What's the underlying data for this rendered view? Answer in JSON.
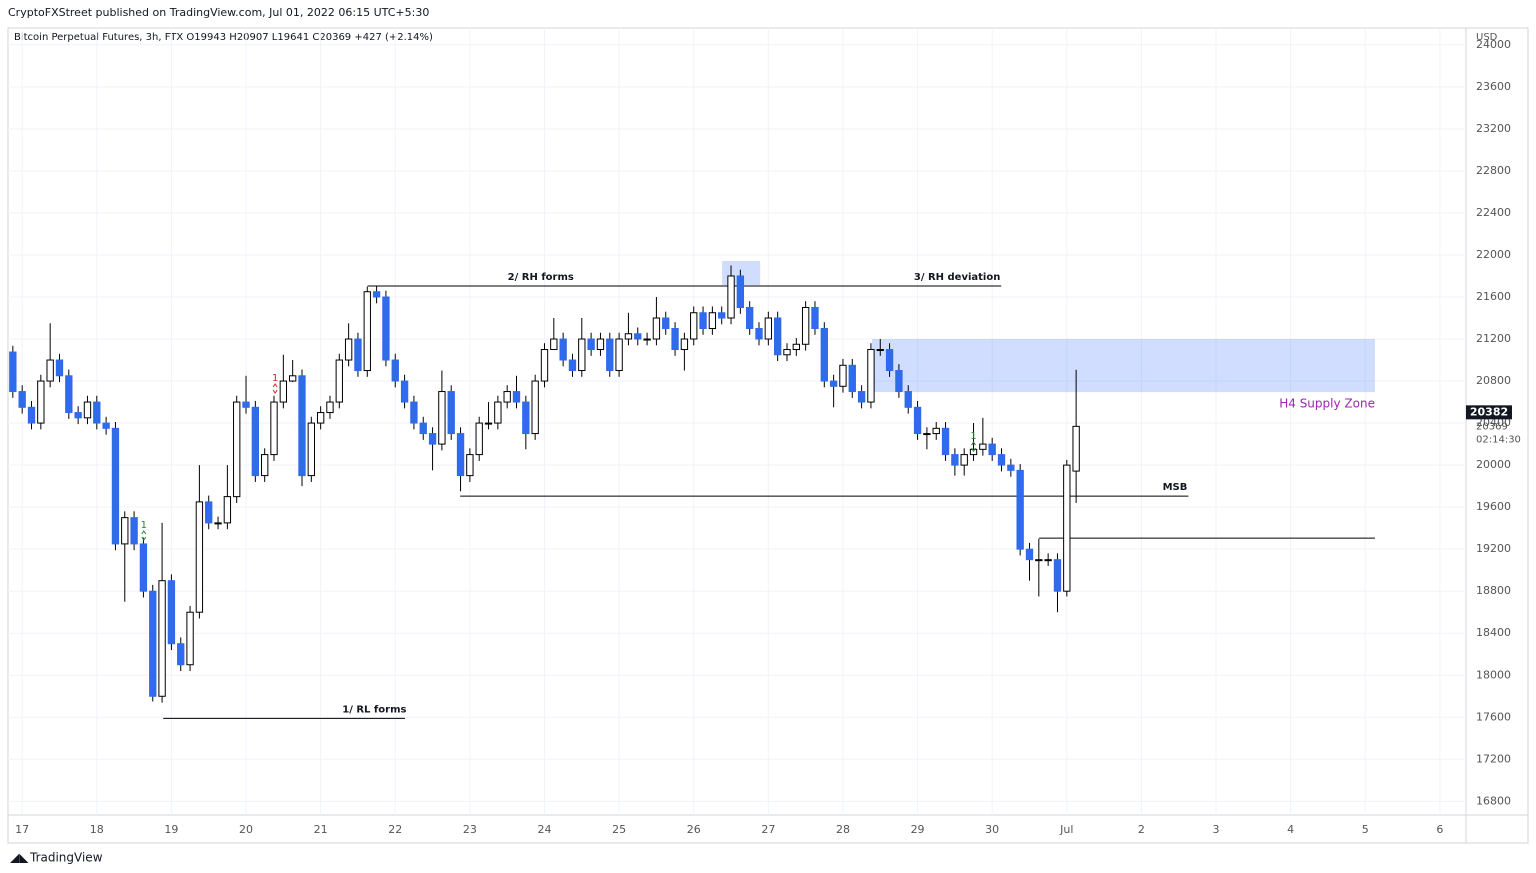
{
  "header": {
    "published": "CryptoFXStreet published on TradingView.com, Jul 01, 2022 06:15 UTC+5:30",
    "footer": "TradingView"
  },
  "chart_data": {
    "type": "candlestick",
    "title": "Bitcoin Perpetual Futures, 3h, FTX  O19943  H20907  L19641  C20369  +427 (+2.14%)",
    "y_unit": "USD",
    "bull_color": "#ffffff",
    "bear_color": "#2f6bea",
    "wick_color": "#000000",
    "x": [
      -0.125,
      0,
      0.125,
      0.25,
      0.375,
      0.5,
      0.625,
      0.75,
      0.875,
      1,
      1.125,
      1.25,
      1.375,
      1.5,
      1.625,
      1.75,
      1.875,
      2,
      2.125,
      2.25,
      2.375,
      2.5,
      2.625,
      2.75,
      2.875,
      3,
      3.125,
      3.25,
      3.375,
      3.5,
      3.625,
      3.75,
      3.875,
      4,
      4.125,
      4.25,
      4.375,
      4.5,
      4.625,
      4.75,
      4.875,
      5,
      5.125,
      5.25,
      5.375,
      5.5,
      5.625,
      5.75,
      5.875,
      6,
      6.125,
      6.25,
      6.375,
      6.5,
      6.625,
      6.75,
      6.875,
      7,
      7.125,
      7.25,
      7.375,
      7.5,
      7.625,
      7.75,
      7.875,
      8,
      8.125,
      8.25,
      8.375,
      8.5,
      8.625,
      8.75,
      8.875,
      9,
      9.125,
      9.25,
      9.375,
      9.5,
      9.625,
      9.75,
      9.875,
      10,
      10.125,
      10.25,
      10.375,
      10.5,
      10.625,
      10.75,
      10.875,
      11,
      11.125,
      11.25,
      11.375,
      11.5,
      11.625,
      11.75,
      11.875,
      12,
      12.125,
      12.25,
      12.375,
      12.5,
      12.625,
      12.75,
      12.875,
      13,
      13.125,
      13.25,
      13.375,
      13.5,
      13.625,
      13.75,
      13.875,
      14,
      14.125
    ],
    "open": [
      21076,
      20700,
      20550,
      20400,
      20800,
      21000,
      20850,
      20500,
      20450,
      20600,
      20400,
      20350,
      19250,
      19500,
      19250,
      18800,
      17800,
      18900,
      18300,
      18100,
      18600,
      19650,
      19450,
      19450,
      19700,
      20600,
      20550,
      19900,
      20100,
      20600,
      20800,
      20850,
      19900,
      20400,
      20500,
      20600,
      21000,
      21200,
      20900,
      21650,
      21600,
      21000,
      20800,
      20600,
      20400,
      20300,
      20200,
      20700,
      20300,
      19900,
      20100,
      20400,
      20400,
      20600,
      20700,
      20600,
      20300,
      20800,
      21100,
      21200,
      21000,
      20900,
      21200,
      21100,
      21200,
      20900,
      21200,
      21250,
      21200,
      21200,
      21400,
      21300,
      21100,
      21200,
      21450,
      21300,
      21450,
      21400,
      21800,
      21500,
      21300,
      21200,
      21400,
      21050,
      21100,
      21150,
      21500,
      21300,
      20800,
      20750,
      20950,
      20700,
      20600,
      21100,
      21100,
      20900,
      20700,
      20550,
      20300,
      20300,
      20350,
      20100,
      20000,
      20100,
      20150,
      20200,
      20100,
      20000,
      19950,
      19200,
      19100,
      19100,
      19100,
      18800,
      19943
    ],
    "high": [
      21136,
      20760,
      20610,
      20860,
      21350,
      21060,
      20910,
      20560,
      20660,
      20660,
      20460,
      20410,
      19560,
      19560,
      19310,
      18860,
      19450,
      18960,
      18360,
      18660,
      20000,
      19710,
      19510,
      20000,
      20660,
      20850,
      20610,
      20160,
      20660,
      21050,
      21000,
      20910,
      20460,
      20560,
      20660,
      21060,
      21350,
      21260,
      21700,
      21700,
      21660,
      21060,
      20860,
      20660,
      20460,
      20360,
      20900,
      20760,
      20360,
      20160,
      20460,
      20600,
      20660,
      20760,
      20850,
      20660,
      20860,
      21160,
      21400,
      21260,
      21060,
      21400,
      21260,
      21260,
      21260,
      21260,
      21450,
      21310,
      21260,
      21600,
      21460,
      21360,
      21260,
      21510,
      21510,
      21510,
      21510,
      21900,
      21860,
      21560,
      21360,
      21460,
      21460,
      21160,
      21210,
      21560,
      21560,
      21360,
      20860,
      21010,
      21010,
      20760,
      21160,
      21200,
      21160,
      20960,
      20760,
      20610,
      20360,
      20410,
      20410,
      20160,
      20160,
      20400,
      20450,
      20260,
      20160,
      20060,
      20010,
      19260,
      19300,
      19160,
      19160,
      20050,
      20907
    ],
    "low": [
      20640,
      20490,
      20340,
      20340,
      20740,
      20790,
      20440,
      20390,
      20390,
      20340,
      20290,
      19190,
      18700,
      19190,
      18740,
      17750,
      17740,
      18240,
      18040,
      18040,
      18540,
      19390,
      19390,
      19390,
      19640,
      20490,
      19840,
      19840,
      20040,
      20540,
      20790,
      19800,
      19840,
      20340,
      20440,
      20540,
      20940,
      20840,
      20840,
      21540,
      20940,
      20740,
      20540,
      20340,
      20240,
      19950,
      20140,
      20240,
      19750,
      19840,
      20040,
      20340,
      20340,
      20540,
      20540,
      20150,
      20240,
      20740,
      21140,
      20940,
      20840,
      20840,
      21040,
      21040,
      20840,
      20840,
      21140,
      21140,
      21140,
      21140,
      21240,
      21040,
      20900,
      21140,
      21240,
      21240,
      21340,
      21340,
      21440,
      21240,
      21140,
      21140,
      20990,
      20990,
      21040,
      21090,
      21240,
      20740,
      20550,
      20690,
      20640,
      20540,
      20540,
      21040,
      20840,
      20640,
      20490,
      20240,
      20150,
      20240,
      20040,
      19900,
      19900,
      20040,
      20090,
      20040,
      19940,
      19890,
      19140,
      18900,
      18750,
      19040,
      18600,
      18750,
      19641
    ],
    "close": [
      20700,
      20550,
      20400,
      20800,
      21000,
      20850,
      20500,
      20450,
      20600,
      20400,
      20350,
      19250,
      19500,
      19250,
      18800,
      17800,
      18900,
      18300,
      18100,
      18600,
      19650,
      19450,
      19450,
      19700,
      20600,
      20550,
      19900,
      20100,
      20600,
      20800,
      20850,
      19900,
      20400,
      20500,
      20600,
      21000,
      21200,
      20900,
      21650,
      21600,
      21000,
      20800,
      20600,
      20400,
      20300,
      20200,
      20700,
      20300,
      19900,
      20100,
      20400,
      20400,
      20600,
      20700,
      20600,
      20300,
      20800,
      21100,
      21200,
      21000,
      20900,
      21200,
      21100,
      21200,
      20900,
      21200,
      21250,
      21200,
      21200,
      21400,
      21300,
      21100,
      21200,
      21450,
      21300,
      21450,
      21400,
      21800,
      21500,
      21300,
      21200,
      21400,
      21050,
      21100,
      21150,
      21500,
      21300,
      20800,
      20750,
      20950,
      20700,
      20600,
      21100,
      21100,
      20900,
      20700,
      20550,
      20300,
      20300,
      20350,
      20100,
      20000,
      20100,
      20150,
      20200,
      20100,
      20000,
      19950,
      19200,
      19100,
      19100,
      19100,
      18800,
      20000,
      20369
    ],
    "xlim": [
      -0.19,
      19.35
    ],
    "xticks": [
      {
        "value": 0,
        "label": "17"
      },
      {
        "value": 1,
        "label": "18"
      },
      {
        "value": 2,
        "label": "19"
      },
      {
        "value": 3,
        "label": "20"
      },
      {
        "value": 4,
        "label": "21"
      },
      {
        "value": 5,
        "label": "22"
      },
      {
        "value": 6,
        "label": "23"
      },
      {
        "value": 7,
        "label": "24"
      },
      {
        "value": 8,
        "label": "25"
      },
      {
        "value": 9,
        "label": "26"
      },
      {
        "value": 10,
        "label": "27"
      },
      {
        "value": 11,
        "label": "28"
      },
      {
        "value": 12,
        "label": "29"
      },
      {
        "value": 13,
        "label": "30"
      },
      {
        "value": 14,
        "label": "Jul"
      },
      {
        "value": 15,
        "label": "2"
      },
      {
        "value": 16,
        "label": "3"
      },
      {
        "value": 17,
        "label": "4"
      },
      {
        "value": 18,
        "label": "5"
      },
      {
        "value": 19,
        "label": "6"
      }
    ],
    "ylim": [
      16670,
      24160
    ],
    "yticks": [
      16800,
      17200,
      17600,
      18000,
      18400,
      18800,
      19200,
      19600,
      20000,
      20400,
      20800,
      21200,
      21600,
      22000,
      22400,
      22800,
      23200,
      23600,
      24000
    ],
    "grid": true,
    "price_labels": {
      "current": "20382",
      "close": 20369,
      "countdown": "02:14:30"
    },
    "levels": [
      {
        "label": "1/ RL forms",
        "price": 17590,
        "from": 1.89,
        "to": 5.13,
        "label_at": 4.72
      },
      {
        "label": "2/ RH forms",
        "price": 21705,
        "from": 4.63,
        "to": 13.12,
        "label_at": 6.95
      },
      {
        "label": "3/ RH deviation",
        "price": 21705,
        "from": 12.5,
        "to": 13.12,
        "label_at": 12.53
      },
      {
        "label": "MSB",
        "price": 19705,
        "from": 5.87,
        "to": 15.63,
        "label_at": 15.45
      },
      {
        "price": 19305,
        "from": 13.63,
        "to": 18.13
      }
    ],
    "zones": [
      {
        "price_top": 21943,
        "price_bottom": 21714,
        "from": 9.38,
        "to": 9.89
      },
      {
        "label": "H4 Supply Zone",
        "price_top": 21200,
        "price_bottom": 20695,
        "from": 11.39,
        "to": 18.13,
        "color": "#9c27b0"
      }
    ],
    "markers": [
      {
        "text": "1",
        "x": 1.63,
        "price": 19430,
        "color": "#2e7d32"
      },
      {
        "text": "1",
        "x": 3.39,
        "price": 20829,
        "color": "#c62828"
      },
      {
        "text": "1",
        "x": 12.75,
        "price": 20276,
        "color": "#2e7d32"
      }
    ]
  }
}
